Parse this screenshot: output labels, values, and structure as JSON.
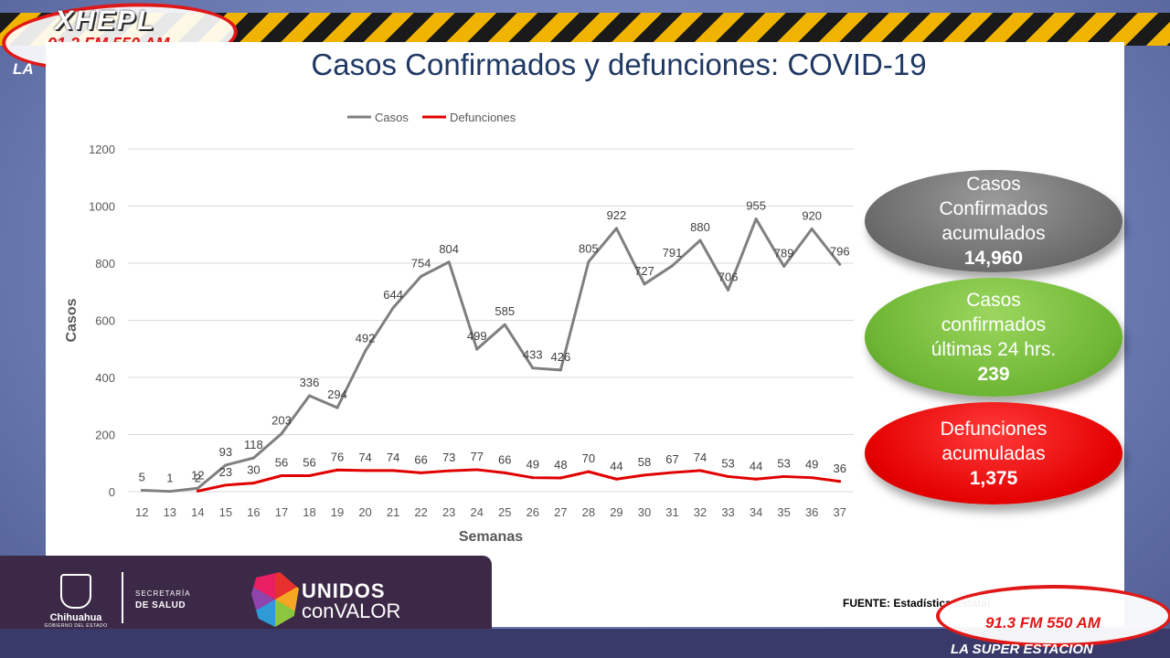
{
  "branding": {
    "station": "XHEPL",
    "frequency": "91.3 FM 550 AM",
    "tagline_short": "LA",
    "tagline": "LA SUPER ESTACION"
  },
  "footer": {
    "state": "Chihuahua",
    "state_sub": "GOBIERNO DEL ESTADO",
    "dept_line1": "SECRETARÍA",
    "dept_line2": "DE SALUD",
    "campaign_line1": "UNIDOS",
    "campaign_line2": "conVALOR",
    "source": "FUENTE: Estadística Estatal"
  },
  "summary": {
    "cumulative_label": "Casos Confirmados acumulados",
    "cumulative_value": "14,960",
    "last24_label": "Casos confirmados últimas 24 hrs.",
    "last24_value": "239",
    "deaths_label": "Defunciones acumuladas",
    "deaths_value": "1,375"
  },
  "chart_data": {
    "type": "line",
    "title": "Casos Confirmados y defunciones: COVID-19",
    "xlabel": "Semanas",
    "ylabel": "Casos",
    "ylim": [
      0,
      1200
    ],
    "yticks": [
      0,
      200,
      400,
      600,
      800,
      1000,
      1200
    ],
    "grid": true,
    "legend_position": "top",
    "categories": [
      "12",
      "13",
      "14",
      "15",
      "16",
      "17",
      "18",
      "19",
      "20",
      "21",
      "22",
      "23",
      "24",
      "25",
      "26",
      "27",
      "28",
      "29",
      "30",
      "31",
      "32",
      "33",
      "34",
      "35",
      "36",
      "37"
    ],
    "series": [
      {
        "name": "Casos",
        "color": "#7f7f7f",
        "values": [
          5,
          1,
          12,
          93,
          118,
          203,
          336,
          294,
          492,
          644,
          754,
          804,
          499,
          585,
          433,
          426,
          805,
          922,
          727,
          791,
          880,
          706,
          955,
          789,
          920,
          796
        ]
      },
      {
        "name": "Defunciones",
        "color": "#e00000",
        "values": [
          null,
          null,
          2,
          23,
          30,
          56,
          56,
          76,
          74,
          74,
          66,
          73,
          77,
          66,
          49,
          48,
          70,
          44,
          58,
          67,
          74,
          53,
          44,
          53,
          49,
          36
        ]
      }
    ]
  }
}
